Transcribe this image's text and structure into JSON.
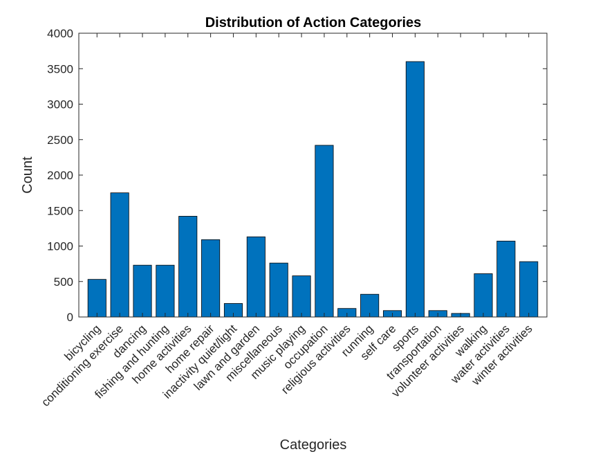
{
  "chart_data": {
    "type": "bar",
    "title": "Distribution of Action Categories",
    "xlabel": "Categories",
    "ylabel": "Count",
    "ylim": [
      0,
      4000
    ],
    "yticks": [
      "0",
      "500",
      "1000",
      "1500",
      "2000",
      "2500",
      "3000",
      "3500",
      "4000"
    ],
    "categories": [
      "bicycling",
      "conditioning exercise",
      "dancing",
      "fishing and hunting",
      "home activities",
      "home repair",
      "inactivity quiet/light",
      "lawn and garden",
      "miscellaneous",
      "music playing",
      "occupation",
      "religious activities",
      "running",
      "self care",
      "sports",
      "transportation",
      "volunteer activities",
      "walking",
      "water activities",
      "winter activities"
    ],
    "values": [
      530,
      1750,
      730,
      730,
      1420,
      1090,
      190,
      1130,
      760,
      580,
      2420,
      120,
      320,
      90,
      3600,
      90,
      50,
      610,
      1070,
      780
    ],
    "grid": false,
    "legend": "none",
    "colors": {
      "bar": "#0072BD",
      "bar_edge": "#000000",
      "axis": "#262626"
    }
  }
}
